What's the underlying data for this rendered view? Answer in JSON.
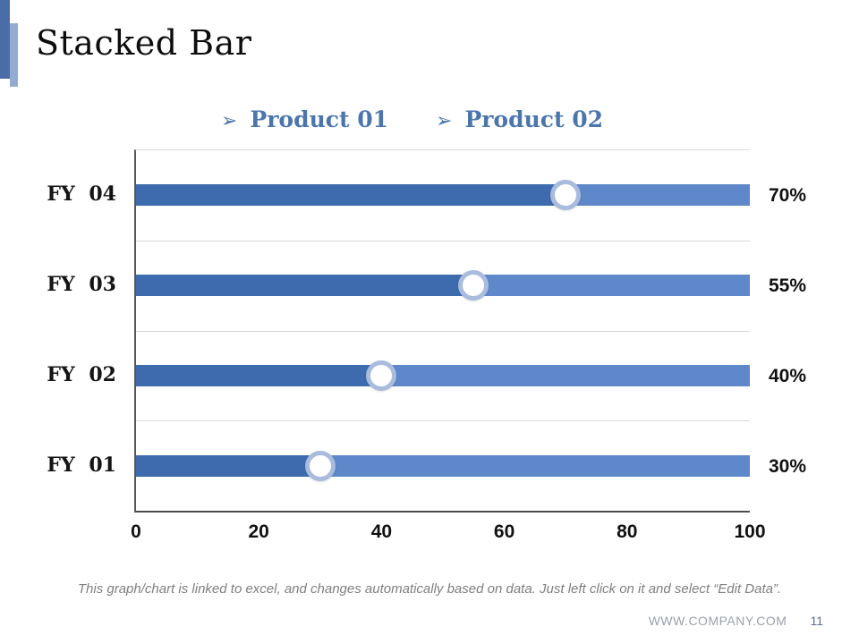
{
  "slide": {
    "title": "Stacked Bar",
    "footer_note": "This graph/chart is linked to excel, and changes automatically based on data. Just left click on it and select “Edit Data”.",
    "website": "WWW.COMPANY.COM",
    "page_number": "11"
  },
  "legend": {
    "items": [
      {
        "marker": "➢",
        "label": "Product 01"
      },
      {
        "marker": "➢",
        "label": "Product 02"
      }
    ]
  },
  "chart_data": {
    "type": "bar",
    "orientation": "horizontal",
    "stacked": true,
    "title": "Stacked Bar",
    "categories": [
      "FY 04",
      "FY 03",
      "FY 02",
      "FY 01"
    ],
    "series": [
      {
        "name": "Product 01",
        "values": [
          70,
          55,
          40,
          30
        ],
        "color": "#3e6bae"
      },
      {
        "name": "Product 02",
        "values": [
          30,
          45,
          60,
          70
        ],
        "color": "#5e88c9"
      }
    ],
    "data_labels": [
      "70%",
      "55%",
      "40%",
      "30%"
    ],
    "x_axis": {
      "min": 0,
      "max": 100,
      "ticks": [
        0,
        20,
        40,
        60,
        80,
        100
      ]
    },
    "grid": true,
    "legend_position": "top",
    "marker": {
      "shape": "circle",
      "fill": "#ffffff",
      "ring": "#a9bcde"
    }
  },
  "colors": {
    "accent_dark": "#4a6da8",
    "accent_light": "#94abd1",
    "legend_text": "#4b76ad",
    "gridline": "#d9d9d9",
    "axis_line": "#595959",
    "footer_text": "#7f7f7f"
  }
}
